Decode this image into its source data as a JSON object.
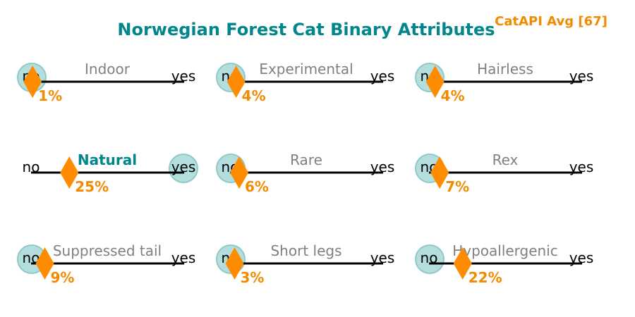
{
  "title": "Norwegian Forest Cat Binary Attributes",
  "badge": "CatAPI Avg [67]",
  "colors": {
    "title": "#00868b",
    "badge": "#f28b00",
    "marker": "#ff8c00",
    "percent_text": "#f28b00",
    "circle_fill": "#b0dcdc",
    "circle_stroke": "#8fcaca",
    "label_muted": "#808080",
    "label_highlight": "#00868b",
    "axis": "#000000"
  },
  "chart_data": {
    "type": "scatter",
    "scale_min_label": "no",
    "scale_max_label": "yes",
    "xlim": [
      0,
      100
    ],
    "unit": "%",
    "panels": [
      {
        "label": "Indoor",
        "value": 1,
        "circle": "no",
        "highlight": false
      },
      {
        "label": "Experimental",
        "value": 4,
        "circle": "no",
        "highlight": false
      },
      {
        "label": "Hairless",
        "value": 4,
        "circle": "no",
        "highlight": false
      },
      {
        "label": "Natural",
        "value": 25,
        "circle": "yes",
        "highlight": true
      },
      {
        "label": "Rare",
        "value": 6,
        "circle": "no",
        "highlight": false
      },
      {
        "label": "Rex",
        "value": 7,
        "circle": "no",
        "highlight": false
      },
      {
        "label": "Suppressed tail",
        "value": 9,
        "circle": "no",
        "highlight": false
      },
      {
        "label": "Short legs",
        "value": 3,
        "circle": "no",
        "highlight": false
      },
      {
        "label": "Hypoallergenic",
        "value": 22,
        "circle": "no",
        "highlight": false
      }
    ]
  }
}
